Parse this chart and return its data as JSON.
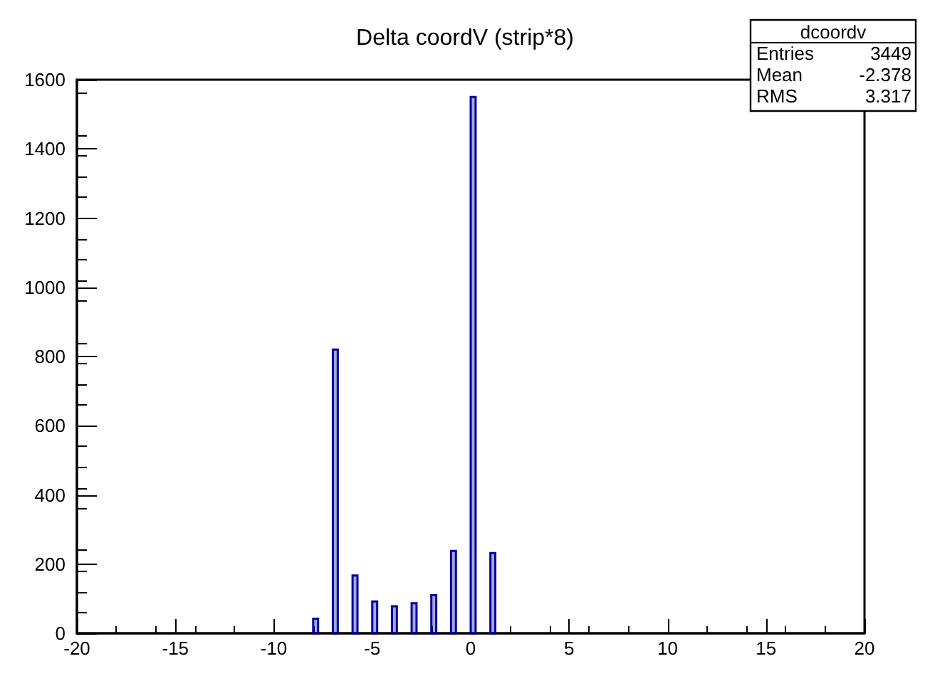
{
  "chart_data": {
    "type": "histogram",
    "title": "Delta coordV (strip*8)",
    "bins": [
      -8,
      -7.75,
      -7,
      -6.75,
      -6,
      -5.75,
      -5,
      -4.75,
      -4,
      -3.75,
      -3,
      -2.75,
      -2,
      -1.75,
      -1,
      -0.75,
      0,
      0.25,
      1,
      1.25
    ],
    "values": [
      42,
      0,
      820,
      0,
      167,
      0,
      92,
      0,
      78,
      0,
      87,
      0,
      110,
      0,
      238,
      0,
      1550,
      0,
      232
    ],
    "color": "#000099",
    "xlim": [
      -20,
      20
    ],
    "xticks": [
      -20,
      -15,
      -10,
      -5,
      0,
      5,
      10,
      15,
      20
    ],
    "ylim": [
      0,
      1600
    ],
    "yticks": [
      0,
      200,
      400,
      600,
      800,
      1000,
      1200,
      1400,
      1600
    ],
    "grid": false,
    "annotations": [
      "dcoordv",
      "Entries 3449",
      "Mean -2.378",
      "RMS 3.317"
    ]
  }
}
